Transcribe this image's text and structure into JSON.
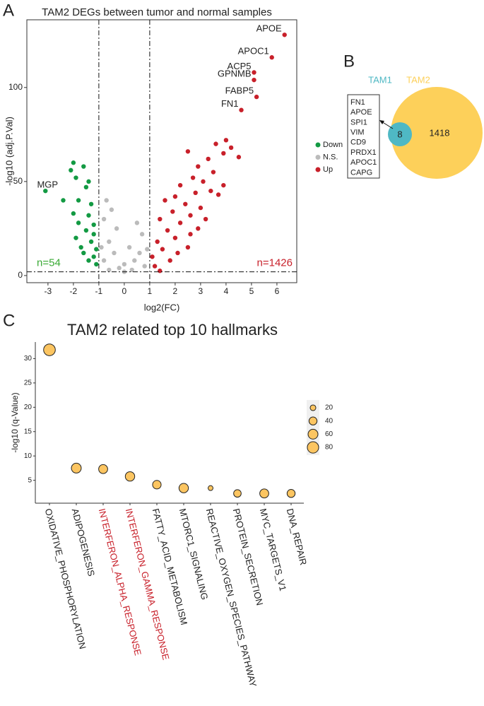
{
  "chart_data": [
    {
      "type": "scatter",
      "panel_label": "A",
      "title": "TAM2 DEGs between tumor and normal samples",
      "x_label": "log2(FC)",
      "y_label": "-log10 (adj.P.Val)",
      "xlim": [
        -3.83,
        6.78
      ],
      "xticks": [
        -3,
        -2,
        -1,
        0,
        1,
        2,
        3,
        4,
        5,
        6
      ],
      "ylim": [
        -3.8,
        136
      ],
      "yticks": [
        0,
        50,
        100
      ],
      "vlines": [
        -1,
        1
      ],
      "hline": 2,
      "annotations": [
        {
          "text": "n=54",
          "color": "#3aaa35"
        },
        {
          "text": "n=1426",
          "color": "#c8202a"
        }
      ],
      "series": [
        {
          "name": "Down",
          "color": "#139a43",
          "x": [
            -3.1,
            -2,
            -1.6,
            -2.1,
            -1.9,
            -1.4,
            -1.5,
            -2.4,
            -1.8,
            -1.3,
            -2,
            -1.4,
            -1.8,
            -1.2,
            -1.5,
            -1.9,
            -1.3,
            -1.1,
            -1.6,
            -1.2,
            -1.4,
            -1.1,
            -1.7,
            -1.2
          ],
          "values": [
            45,
            60,
            58,
            56,
            52,
            50,
            47,
            40,
            40,
            38,
            33,
            32,
            28,
            27,
            24,
            20,
            18,
            14,
            12,
            10,
            8,
            6,
            15,
            22
          ],
          "labels": [
            "MGP",
            null,
            null,
            null,
            null,
            null,
            null,
            null,
            null,
            null,
            null,
            null,
            null,
            null,
            null,
            null,
            null,
            null,
            null,
            null,
            null,
            null,
            null,
            null
          ]
        },
        {
          "name": "N.S.",
          "color": "#bbbbbb",
          "x": [
            -0.7,
            -0.5,
            -0.8,
            -0.3,
            0.5,
            0.7,
            -0.6,
            0.2,
            -0.4,
            0.6,
            -0.8,
            0,
            0.4,
            -0.2,
            0.8,
            -0.6,
            0.3,
            0,
            -0.9,
            0.9
          ],
          "values": [
            40,
            35,
            30,
            25,
            28,
            22,
            18,
            15,
            12,
            12,
            8,
            6,
            8,
            4,
            5,
            3,
            3,
            2,
            15,
            14
          ]
        },
        {
          "name": "Up",
          "color": "#c8202a",
          "x": [
            6.3,
            5.8,
            5.1,
            5.1,
            5.2,
            4.6,
            4,
            3.6,
            4.2,
            3.9,
            4.5,
            2.5,
            3.3,
            2.9,
            3.5,
            2.7,
            3.1,
            2.2,
            3.4,
            2.8,
            2,
            3.7,
            2.4,
            1.6,
            3.0,
            1.9,
            2.6,
            1.4,
            2.2,
            3.2,
            1.7,
            2.0,
            1.3,
            2.6,
            1.5,
            1.1,
            2.1,
            1.8,
            1.2,
            2.9,
            3.9,
            1.4,
            2.5
          ],
          "values": [
            128,
            116,
            108,
            104,
            95,
            88,
            72,
            70,
            68,
            65,
            63,
            66,
            62,
            58,
            55,
            52,
            50,
            48,
            45,
            44,
            42,
            43,
            38,
            40,
            36,
            34,
            32,
            30,
            28,
            30,
            24,
            20,
            18,
            22,
            14,
            10,
            12,
            8,
            5,
            25,
            48,
            2.5,
            15
          ],
          "labels": [
            "APOE",
            "APOC1",
            "ACP5",
            "GPNMB",
            "FABP5",
            "FN1",
            null,
            null,
            null,
            null,
            null,
            null,
            null,
            null,
            null,
            null,
            null,
            null,
            null,
            null,
            null,
            null,
            null,
            null,
            null,
            null,
            null,
            null,
            null,
            null,
            null,
            null,
            null,
            null,
            null,
            null,
            null,
            null,
            null,
            null,
            null,
            null,
            null
          ]
        }
      ]
    },
    {
      "type": "venn",
      "panel_label": "B",
      "sets": [
        {
          "name": "TAM1",
          "color": "#4fb8c4"
        },
        {
          "name": "TAM2",
          "color": "#fdd05a"
        }
      ],
      "regions": [
        8,
        1418
      ],
      "genes": [
        "FN1",
        "APOE",
        "SPI1",
        "VIM",
        "CD9",
        "PRDX1",
        "APOC1",
        "CAPG"
      ]
    },
    {
      "type": "bubble",
      "panel_label": "C",
      "title": "TAM2 related top 10 hallmarks",
      "y_label": "-log10 (q-Value)",
      "color": "#fcc561",
      "categories": [
        "OXIDATIVE_PHOSPHORYLATION",
        "ADIPOGENESIS",
        "INTERFERON_ALPHA_RESPONSE",
        "INTERFERON_GAMMA_RESPONSE",
        "FATTY_ACID_METABOLISM",
        "MTORC1_SIGNALING",
        "REACTIVE_OXYGEN_SPECIES_PATHWAY",
        "PROTEIN_SECRETION",
        "MYC_TARGETS_V1",
        "DNA_REPAIR"
      ],
      "label_colors": [
        "#222222",
        "#222222",
        "#c8202a",
        "#c8202a",
        "#222222",
        "#222222",
        "#222222",
        "#222222",
        "#222222",
        "#222222"
      ],
      "values": [
        31.8,
        7.5,
        7.3,
        5.8,
        4.1,
        3.4,
        3.4,
        2.3,
        2.3,
        2.3
      ],
      "sizes": [
        85,
        60,
        50,
        55,
        45,
        55,
        15,
        35,
        50,
        40
      ],
      "ylim": [
        0.3,
        33.4
      ],
      "yticks": [
        5,
        10,
        15,
        20,
        25,
        30
      ],
      "size_legend": [
        20,
        40,
        60,
        80
      ]
    }
  ]
}
